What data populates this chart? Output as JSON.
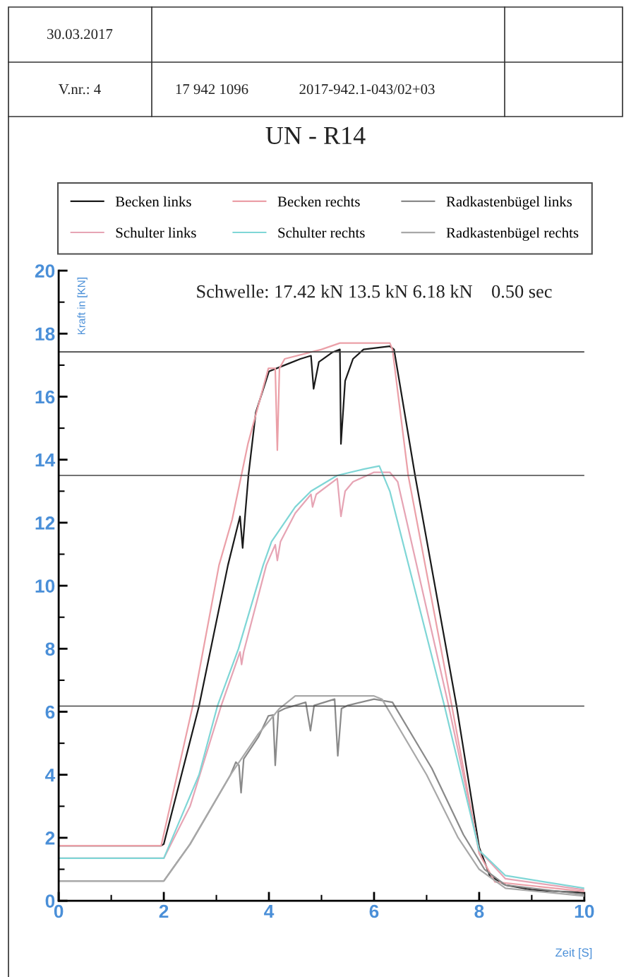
{
  "chart_data": {
    "type": "line",
    "title": "UN - R14",
    "xlabel": "Zeit [S]",
    "ylabel": "Kraft in [KN]",
    "xlim": [
      0,
      10
    ],
    "ylim": [
      0,
      20
    ],
    "xticks": [
      0,
      2,
      4,
      6,
      8,
      10
    ],
    "yticks": [
      0,
      2,
      4,
      6,
      8,
      10,
      12,
      14,
      16,
      18,
      20
    ],
    "grid": false,
    "legend": "top",
    "marker": "none",
    "line_style": "solid",
    "annotations": [
      "30.03.2017",
      "V.nr.: 4",
      "17 942 1096",
      "2017-942.1-043/02+03",
      "Schwelle: 17.42 kN 13.5 kN 6.18 kN    0.50 sec"
    ],
    "ref_lines": [
      {
        "axis": "y",
        "value": 17.42,
        "label": null,
        "color": "#444444"
      },
      {
        "axis": "y",
        "value": 13.5,
        "label": null,
        "color": "#444444"
      },
      {
        "axis": "y",
        "value": 6.18,
        "label": null,
        "color": "#444444"
      }
    ],
    "series": [
      {
        "name": "Becken links",
        "color": "#1a1a1a",
        "x": [
          0,
          1.95,
          2.0,
          2.67,
          3.22,
          3.45,
          3.5,
          3.55,
          3.61,
          3.75,
          4.0,
          4.3,
          4.6,
          4.8,
          4.85,
          4.95,
          5.2,
          5.35,
          5.37,
          5.45,
          5.6,
          5.8,
          6.3,
          6.38,
          6.78,
          7.57,
          8.0,
          8.2,
          8.5,
          9.0,
          10
        ],
        "values": [
          1.75,
          1.75,
          1.8,
          6.18,
          10.65,
          12.2,
          11.2,
          12.3,
          13.5,
          15.5,
          16.8,
          17.0,
          17.2,
          17.3,
          16.25,
          17.1,
          17.4,
          17.5,
          14.5,
          16.5,
          17.2,
          17.5,
          17.6,
          17.5,
          13.5,
          6.18,
          1.7,
          0.8,
          0.5,
          0.35,
          0.25
        ]
      },
      {
        "name": "Schulter links",
        "color": "#e6a4b4",
        "x": [
          0,
          2.0,
          2.5,
          3.09,
          3.45,
          3.48,
          3.52,
          3.95,
          4.12,
          4.16,
          4.22,
          4.5,
          4.8,
          4.83,
          4.9,
          5.3,
          5.37,
          5.45,
          5.6,
          6.0,
          6.3,
          6.45,
          7.42,
          8.0,
          8.5,
          10
        ],
        "values": [
          1.35,
          1.35,
          3.0,
          6.18,
          7.9,
          7.5,
          7.9,
          10.65,
          11.3,
          10.8,
          11.4,
          12.3,
          12.9,
          12.5,
          12.9,
          13.4,
          12.2,
          13.0,
          13.3,
          13.6,
          13.6,
          13.3,
          6.18,
          1.6,
          0.7,
          0.35
        ]
      },
      {
        "name": "Becken rechts",
        "color": "#eba0a8",
        "x": [
          0,
          1.95,
          2.55,
          3.05,
          3.3,
          3.6,
          3.99,
          4.12,
          4.16,
          4.2,
          4.3,
          5.0,
          5.35,
          6.3,
          6.35,
          6.65,
          7.48,
          8.0,
          8.3,
          10
        ],
        "values": [
          1.75,
          1.75,
          6.18,
          10.65,
          12.1,
          14.5,
          16.9,
          16.9,
          14.3,
          16.9,
          17.2,
          17.5,
          17.7,
          17.7,
          17.5,
          13.5,
          6.18,
          1.5,
          0.6,
          0.3
        ]
      },
      {
        "name": "Schulter rechts",
        "color": "#7fd6d6",
        "x": [
          0,
          2.0,
          2.67,
          3.02,
          3.42,
          3.89,
          4.05,
          4.5,
          4.8,
          5.3,
          5.8,
          6.1,
          6.3,
          7.34,
          8.0,
          8.5,
          10
        ],
        "values": [
          1.35,
          1.35,
          4.0,
          6.18,
          8.0,
          10.65,
          11.4,
          12.5,
          13.0,
          13.5,
          13.7,
          13.8,
          13.0,
          6.18,
          1.6,
          0.8,
          0.4
        ]
      },
      {
        "name": "Radkastenbügel links",
        "color": "#8a8a8a",
        "x": [
          0,
          2.0,
          2.5,
          3.27,
          3.37,
          3.43,
          3.47,
          3.52,
          3.8,
          3.99,
          4.08,
          4.12,
          4.18,
          4.3,
          4.7,
          4.79,
          4.86,
          5.25,
          5.31,
          5.38,
          5.5,
          6.0,
          6.35,
          7.1,
          7.7,
          8.1,
          8.5,
          10
        ],
        "values": [
          0.63,
          0.63,
          1.8,
          4.0,
          4.4,
          4.3,
          3.43,
          4.5,
          5.2,
          5.87,
          5.9,
          4.3,
          6.0,
          6.1,
          6.3,
          5.4,
          6.2,
          6.4,
          4.6,
          6.1,
          6.2,
          6.4,
          6.3,
          4.2,
          2.1,
          1.0,
          0.5,
          0.2
        ]
      },
      {
        "name": "Radkastenbügel rechts",
        "color": "#a8a8a8",
        "x": [
          0,
          2.0,
          2.5,
          3.27,
          3.8,
          4.2,
          4.5,
          6.0,
          6.15,
          7.0,
          7.6,
          8.0,
          8.5,
          10
        ],
        "values": [
          0.63,
          0.63,
          1.8,
          4.0,
          5.3,
          6.1,
          6.5,
          6.5,
          6.4,
          4.0,
          2.0,
          1.0,
          0.4,
          0.15
        ]
      }
    ]
  }
}
